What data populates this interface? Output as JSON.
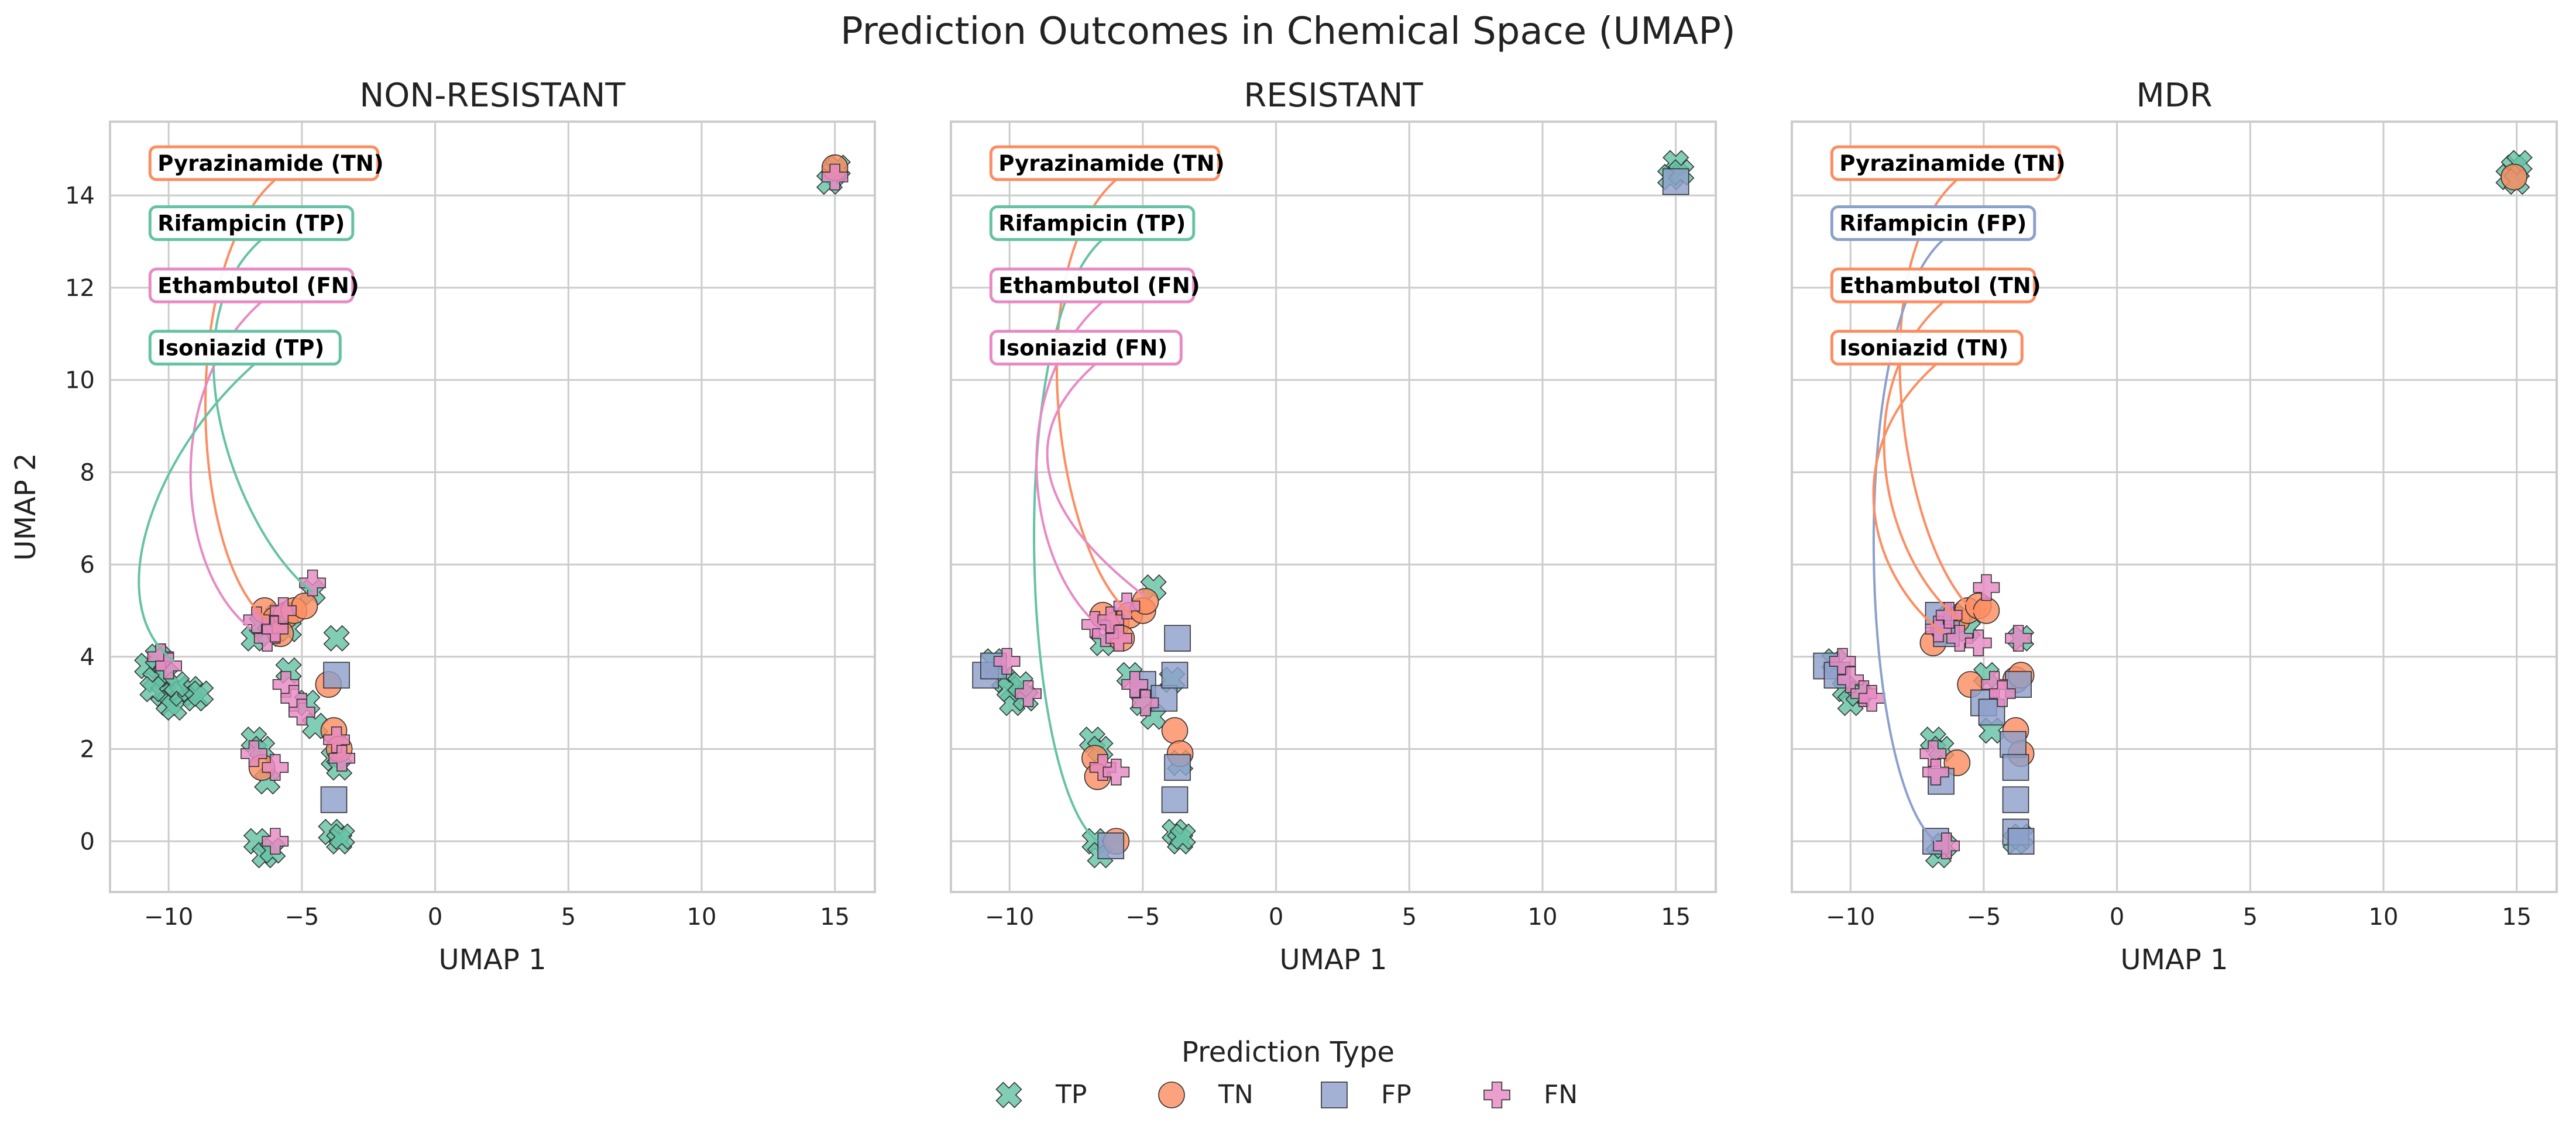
{
  "figure": {
    "title": "Prediction Outcomes in Chemical Space (UMAP)",
    "legend_title": "Prediction Type",
    "legend_position": "bottom-center"
  },
  "colors": {
    "TP": "#66c2a5",
    "TN": "#fc8d62",
    "FP": "#8da0cb",
    "FN": "#e78ac3"
  },
  "legend": [
    {
      "key": "TP",
      "label": "TP",
      "marker": "x-cross"
    },
    {
      "key": "TN",
      "label": "TN",
      "marker": "circle"
    },
    {
      "key": "FP",
      "label": "FP",
      "marker": "square"
    },
    {
      "key": "FN",
      "label": "FN",
      "marker": "plus"
    }
  ],
  "chart_data": [
    {
      "type": "scatter",
      "title": "NON-RESISTANT",
      "xlabel": "UMAP 1",
      "ylabel": "UMAP 2",
      "xlim": [
        -12.2,
        16.5
      ],
      "ylim": [
        -1.1,
        15.6
      ],
      "xticks": [
        -10,
        -5,
        0,
        5,
        10,
        15
      ],
      "xtick_labels": [
        "−10",
        "−5",
        "0",
        "5",
        "10",
        "15"
      ],
      "yticks": [
        0,
        2,
        4,
        6,
        8,
        10,
        12,
        14
      ],
      "grid": true,
      "annotations": [
        {
          "label": "Pyrazinamide (TN)",
          "type": "TN",
          "text_pos": [
            -10.7,
            14.7
          ],
          "target": [
            -6.3,
            4.8
          ]
        },
        {
          "label": "Rifampicin (TP)",
          "type": "TP",
          "text_pos": [
            -10.7,
            13.4
          ],
          "target": [
            -4.6,
            5.4
          ]
        },
        {
          "label": "Ethambutol (FN)",
          "type": "FN",
          "text_pos": [
            -10.7,
            12.05
          ],
          "target": [
            -6.9,
            4.6
          ]
        },
        {
          "label": "Isoniazid (TP)",
          "type": "TP",
          "text_pos": [
            -10.7,
            10.7
          ],
          "target": [
            -9.8,
            3.9
          ]
        }
      ],
      "series": [
        {
          "key": "TP",
          "points": [
            [
              15.0,
              14.5
            ],
            [
              14.8,
              14.3
            ],
            [
              15.1,
              14.6
            ],
            [
              -10.8,
              3.8
            ],
            [
              -10.5,
              3.5
            ],
            [
              -10.2,
              3.2
            ],
            [
              -10.0,
              3.0
            ],
            [
              -9.8,
              2.9
            ],
            [
              -10.4,
              4.0
            ],
            [
              -10.1,
              3.6
            ],
            [
              -9.5,
              3.2
            ],
            [
              -9.2,
              3.3
            ],
            [
              -9.0,
              3.1
            ],
            [
              -8.8,
              3.2
            ],
            [
              -10.6,
              3.3
            ],
            [
              -9.7,
              3.4
            ],
            [
              -6.8,
              4.4
            ],
            [
              -6.5,
              4.7
            ],
            [
              -6.2,
              4.5
            ],
            [
              -5.9,
              4.9
            ],
            [
              -5.5,
              4.6
            ],
            [
              -4.6,
              5.4
            ],
            [
              -3.7,
              4.4
            ],
            [
              -4.8,
              3.0
            ],
            [
              -4.5,
              2.5
            ],
            [
              -6.8,
              2.2
            ],
            [
              -6.5,
              2.0
            ],
            [
              -6.3,
              1.3
            ],
            [
              -6.7,
              0.0
            ],
            [
              -6.4,
              -0.3
            ],
            [
              -6.1,
              -0.2
            ],
            [
              -3.8,
              1.8
            ],
            [
              -3.6,
              1.6
            ],
            [
              -3.9,
              0.2
            ],
            [
              -3.6,
              0.0
            ],
            [
              -3.5,
              0.1
            ],
            [
              -5.5,
              3.7
            ]
          ]
        },
        {
          "key": "TN",
          "points": [
            [
              15.0,
              14.6
            ],
            [
              -6.4,
              5.0
            ],
            [
              -6.0,
              4.8
            ],
            [
              -5.6,
              4.9
            ],
            [
              -5.3,
              5.0
            ],
            [
              -4.9,
              5.1
            ],
            [
              -5.8,
              4.5
            ],
            [
              -4.0,
              3.4
            ],
            [
              -3.8,
              2.4
            ],
            [
              -3.6,
              2.0
            ],
            [
              -6.5,
              1.6
            ]
          ]
        },
        {
          "key": "FP",
          "points": [
            [
              -3.7,
              3.6
            ],
            [
              -3.8,
              0.9
            ]
          ]
        },
        {
          "key": "FN",
          "points": [
            [
              15.0,
              14.4
            ],
            [
              -10.3,
              4.0
            ],
            [
              -10.0,
              3.8
            ],
            [
              -6.7,
              4.8
            ],
            [
              -6.3,
              4.4
            ],
            [
              -6.0,
              4.6
            ],
            [
              -5.7,
              5.0
            ],
            [
              -4.6,
              5.6
            ],
            [
              -5.6,
              3.4
            ],
            [
              -5.3,
              3.1
            ],
            [
              -5.0,
              2.8
            ],
            [
              -6.8,
              1.9
            ],
            [
              -6.0,
              1.6
            ],
            [
              -3.7,
              2.2
            ],
            [
              -3.5,
              1.8
            ],
            [
              -6.0,
              0.0
            ]
          ]
        }
      ]
    },
    {
      "type": "scatter",
      "title": "RESISTANT",
      "xlabel": "UMAP 1",
      "ylabel": "",
      "xlim": [
        -12.2,
        16.5
      ],
      "ylim": [
        -1.1,
        15.6
      ],
      "xticks": [
        -10,
        -5,
        0,
        5,
        10,
        15
      ],
      "xtick_labels": [
        "−10",
        "−5",
        "0",
        "5",
        "10",
        "15"
      ],
      "yticks": [
        0,
        2,
        4,
        6,
        8,
        10,
        12,
        14
      ],
      "grid": true,
      "annotations": [
        {
          "label": "Pyrazinamide (TN)",
          "type": "TN",
          "text_pos": [
            -10.7,
            14.7
          ],
          "target": [
            -5.4,
            4.9
          ]
        },
        {
          "label": "Rifampicin (TP)",
          "type": "TP",
          "text_pos": [
            -10.7,
            13.4
          ],
          "target": [
            -6.7,
            0.0
          ]
        },
        {
          "label": "Ethambutol (FN)",
          "type": "FN",
          "text_pos": [
            -10.7,
            12.05
          ],
          "target": [
            -6.5,
            4.6
          ]
        },
        {
          "label": "Isoniazid (FN)",
          "type": "FN",
          "text_pos": [
            -10.7,
            10.7
          ],
          "target": [
            -4.9,
            5.3
          ]
        }
      ],
      "series": [
        {
          "key": "TP",
          "points": [
            [
              15.0,
              14.7
            ],
            [
              14.8,
              14.4
            ],
            [
              15.2,
              14.5
            ],
            [
              -10.6,
              3.9
            ],
            [
              -10.2,
              3.5
            ],
            [
              -9.9,
              3.0
            ],
            [
              -10.0,
              3.3
            ],
            [
              -9.4,
              3.1
            ],
            [
              -9.6,
              3.4
            ],
            [
              -6.9,
              2.2
            ],
            [
              -6.6,
              2.0
            ],
            [
              -6.8,
              0.0
            ],
            [
              -6.6,
              -0.3
            ],
            [
              -4.6,
              5.5
            ],
            [
              -5.0,
              3.0
            ],
            [
              -4.6,
              2.7
            ],
            [
              -3.8,
              0.2
            ],
            [
              -3.6,
              0.0
            ],
            [
              -3.5,
              0.1
            ],
            [
              -3.9,
              3.5
            ],
            [
              -3.6,
              1.7
            ],
            [
              -6.5,
              4.3
            ],
            [
              -5.5,
              3.6
            ]
          ]
        },
        {
          "key": "TN",
          "points": [
            [
              -6.5,
              4.9
            ],
            [
              -6.0,
              4.7
            ],
            [
              -5.5,
              4.9
            ],
            [
              -5.0,
              5.0
            ],
            [
              -5.8,
              4.4
            ],
            [
              -4.9,
              5.2
            ],
            [
              -3.8,
              2.4
            ],
            [
              -3.6,
              1.9
            ],
            [
              -6.8,
              1.8
            ],
            [
              -6.7,
              1.4
            ],
            [
              -6.0,
              0.0
            ]
          ]
        },
        {
          "key": "FP",
          "points": [
            [
              15.0,
              14.3
            ],
            [
              -10.9,
              3.6
            ],
            [
              -10.6,
              3.8
            ],
            [
              -5.0,
              3.4
            ],
            [
              -4.2,
              3.1
            ],
            [
              -3.8,
              3.6
            ],
            [
              -3.7,
              4.4
            ],
            [
              -3.7,
              1.6
            ],
            [
              -3.8,
              0.9
            ],
            [
              -6.2,
              -0.1
            ]
          ]
        },
        {
          "key": "FN",
          "points": [
            [
              -10.1,
              3.9
            ],
            [
              -9.3,
              3.2
            ],
            [
              -6.8,
              4.7
            ],
            [
              -6.4,
              4.5
            ],
            [
              -6.2,
              4.8
            ],
            [
              -5.9,
              4.4
            ],
            [
              -5.6,
              5.1
            ],
            [
              -5.3,
              3.4
            ],
            [
              -4.9,
              3.0
            ],
            [
              -6.5,
              1.6
            ],
            [
              -6.0,
              1.5
            ]
          ]
        }
      ]
    },
    {
      "type": "scatter",
      "title": "MDR",
      "xlabel": "UMAP 1",
      "ylabel": "",
      "xlim": [
        -12.2,
        16.5
      ],
      "ylim": [
        -1.1,
        15.6
      ],
      "xticks": [
        -10,
        -5,
        0,
        5,
        10,
        15
      ],
      "xtick_labels": [
        "−10",
        "−5",
        "0",
        "5",
        "10",
        "15"
      ],
      "yticks": [
        0,
        2,
        4,
        6,
        8,
        10,
        12,
        14
      ],
      "grid": true,
      "annotations": [
        {
          "label": "Pyrazinamide (TN)",
          "type": "TN",
          "text_pos": [
            -10.7,
            14.7
          ],
          "target": [
            -5.2,
            4.9
          ]
        },
        {
          "label": "Rifampicin (FP)",
          "type": "FP",
          "text_pos": [
            -10.7,
            13.4
          ],
          "target": [
            -6.8,
            0.0
          ]
        },
        {
          "label": "Ethambutol (TN)",
          "type": "TN",
          "text_pos": [
            -10.7,
            12.05
          ],
          "target": [
            -5.9,
            4.8
          ]
        },
        {
          "label": "Isoniazid (TN)",
          "type": "TN",
          "text_pos": [
            -10.7,
            10.7
          ],
          "target": [
            -6.5,
            4.5
          ]
        }
      ],
      "series": [
        {
          "key": "TP",
          "points": [
            [
              14.9,
              14.6
            ],
            [
              15.1,
              14.7
            ],
            [
              14.7,
              14.4
            ],
            [
              15.0,
              14.3
            ],
            [
              -10.6,
              3.9
            ],
            [
              -10.2,
              3.3
            ],
            [
              -10.0,
              3.0
            ],
            [
              -9.7,
              3.2
            ],
            [
              -6.9,
              2.2
            ],
            [
              -6.6,
              2.0
            ],
            [
              -6.7,
              -0.3
            ],
            [
              -6.5,
              -0.1
            ],
            [
              -4.9,
              3.6
            ],
            [
              -4.7,
              2.4
            ],
            [
              -3.6,
              4.4
            ],
            [
              -3.8,
              0.0
            ],
            [
              -3.6,
              0.1
            ],
            [
              -6.2,
              4.9
            ],
            [
              -5.6,
              4.6
            ]
          ]
        },
        {
          "key": "TN",
          "points": [
            [
              14.9,
              14.4
            ],
            [
              -6.9,
              4.3
            ],
            [
              -6.5,
              4.6
            ],
            [
              -6.0,
              4.8
            ],
            [
              -5.6,
              5.0
            ],
            [
              -5.2,
              5.1
            ],
            [
              -4.9,
              5.0
            ],
            [
              -3.8,
              3.5
            ],
            [
              -3.6,
              3.6
            ],
            [
              -3.8,
              2.4
            ],
            [
              -3.6,
              1.9
            ],
            [
              -6.0,
              1.7
            ],
            [
              -5.5,
              3.4
            ]
          ]
        },
        {
          "key": "FP",
          "points": [
            [
              -10.9,
              3.8
            ],
            [
              -10.5,
              3.6
            ],
            [
              -6.7,
              4.9
            ],
            [
              -6.4,
              4.5
            ],
            [
              -5.0,
              3.0
            ],
            [
              -4.7,
              2.8
            ],
            [
              -3.9,
              2.1
            ],
            [
              -3.8,
              1.6
            ],
            [
              -3.8,
              0.9
            ],
            [
              -3.8,
              0.2
            ],
            [
              -3.6,
              0.0
            ],
            [
              -6.6,
              1.3
            ],
            [
              -6.8,
              0.0
            ],
            [
              -3.7,
              3.4
            ]
          ]
        },
        {
          "key": "FN",
          "points": [
            [
              -10.3,
              3.9
            ],
            [
              -10.0,
              3.5
            ],
            [
              -9.5,
              3.2
            ],
            [
              -9.2,
              3.1
            ],
            [
              -6.7,
              4.6
            ],
            [
              -6.3,
              4.9
            ],
            [
              -5.9,
              4.4
            ],
            [
              -4.9,
              5.5
            ],
            [
              -5.2,
              4.3
            ],
            [
              -4.6,
              3.4
            ],
            [
              -4.3,
              3.2
            ],
            [
              -3.7,
              4.4
            ],
            [
              -6.9,
              1.9
            ],
            [
              -6.4,
              -0.1
            ],
            [
              -6.8,
              1.5
            ]
          ]
        }
      ]
    }
  ]
}
